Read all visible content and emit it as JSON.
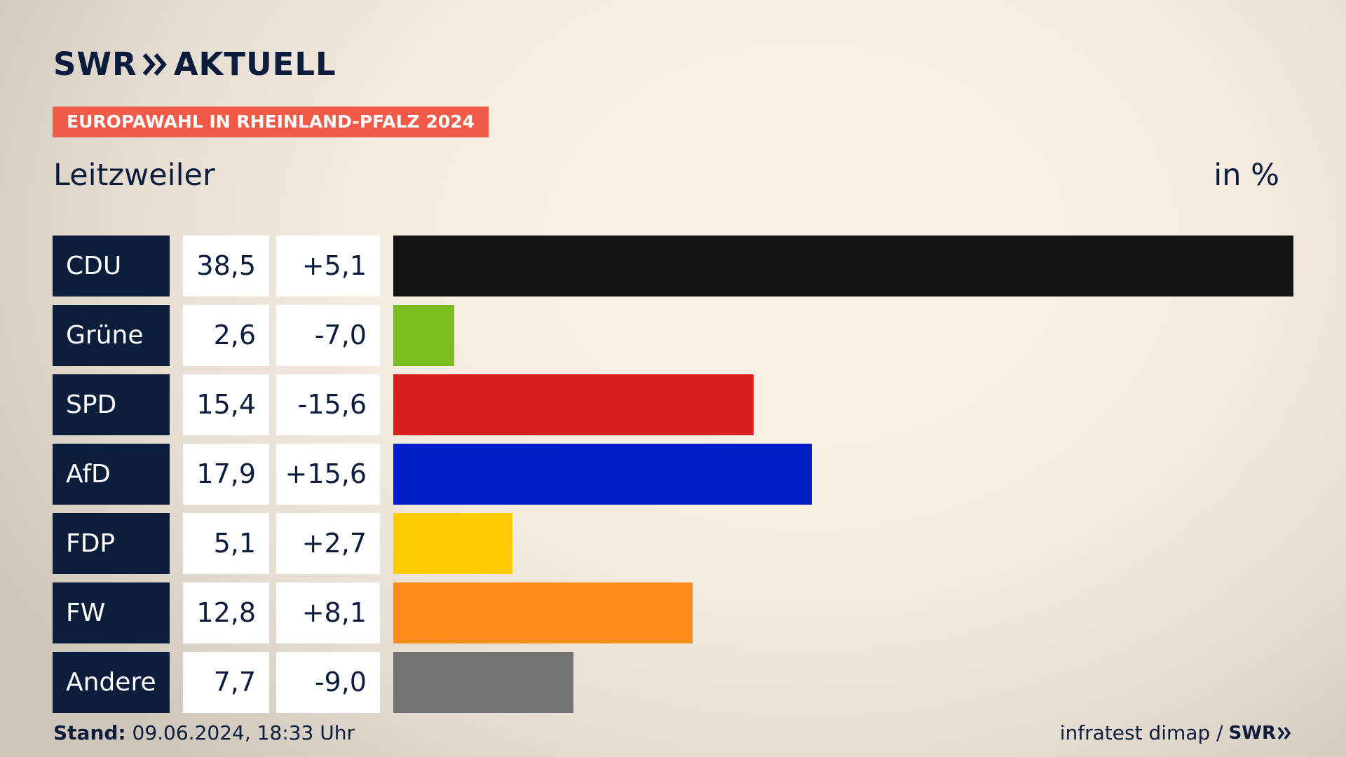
{
  "brand": {
    "logo_left": "SWR",
    "logo_right": "AKTUELL",
    "footer_logo": "SWR",
    "color": "#0b1c3d"
  },
  "badge": {
    "text": "EUROPAWAHL IN RHEINLAND-PFALZ 2024",
    "color": "#f25a48"
  },
  "place": "Leitzweiler",
  "unit": "in %",
  "footer": {
    "stand_label": "Stand:",
    "stand_value": "09.06.2024, 18:33 Uhr",
    "source": "infratest dimap /"
  },
  "chart_data": {
    "type": "bar",
    "orientation": "horizontal",
    "categories": [
      "CDU",
      "Grüne",
      "SPD",
      "AfD",
      "FDP",
      "FW",
      "Andere"
    ],
    "values": [
      38.5,
      2.6,
      15.4,
      17.9,
      5.1,
      12.8,
      7.7
    ],
    "value_labels": [
      "38,5",
      "2,6",
      "15,4",
      "17,9",
      "5,1",
      "12,8",
      "7,7"
    ],
    "differences": [
      "+5,1",
      "-7,0",
      "-15,6",
      "+15,6",
      "+2,7",
      "+8,1",
      "-9,0"
    ],
    "colors": [
      "#141414",
      "#78bc1e",
      "#d71f1d",
      "#001ec8",
      "#ffcc00",
      "#ff8c1a",
      "#737373"
    ],
    "ylabel": "in %"
  }
}
